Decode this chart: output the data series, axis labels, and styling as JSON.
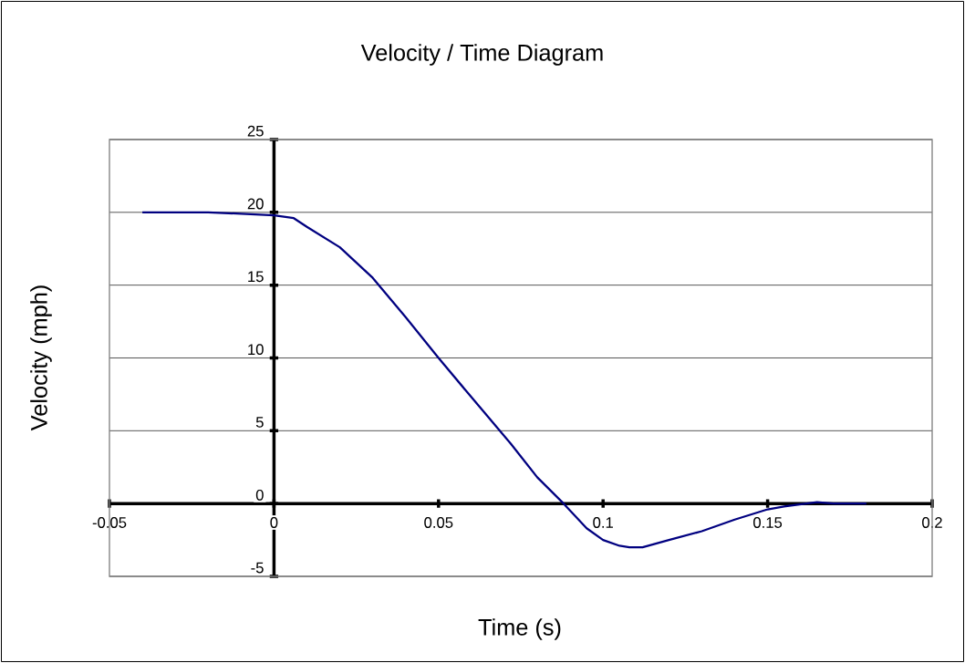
{
  "chart_data": {
    "type": "line",
    "title": "Velocity / Time Diagram",
    "xlabel": "Time (s)",
    "ylabel": "Velocity (mph)",
    "x": [
      -0.04,
      -0.02,
      0,
      0.006,
      0.01,
      0.02,
      0.03,
      0.04,
      0.05,
      0.06,
      0.072,
      0.08,
      0.088,
      0.095,
      0.1,
      0.105,
      0.108,
      0.112,
      0.12,
      0.13,
      0.14,
      0.15,
      0.155,
      0.165,
      0.17,
      0.18
    ],
    "series": [
      {
        "color": "#000080",
        "values": [
          20,
          20,
          19.8,
          19.6,
          19.0,
          17.6,
          15.5,
          12.8,
          10,
          7.3,
          4.1,
          1.8,
          0,
          -1.7,
          -2.5,
          -2.9,
          -3.0,
          -3.0,
          -2.5,
          -1.9,
          -1.1,
          -0.4,
          -0.2,
          0.1,
          0,
          0
        ]
      }
    ],
    "xlim": [
      -0.05,
      0.2
    ],
    "xticks": [
      -0.05,
      0,
      0.05,
      0.1,
      0.15,
      0.2
    ],
    "ylim": [
      -5,
      25
    ],
    "yticks": [
      -5,
      0,
      5,
      10,
      15,
      20,
      25
    ],
    "grid": "y",
    "marker": "none",
    "line_style": "solid"
  }
}
